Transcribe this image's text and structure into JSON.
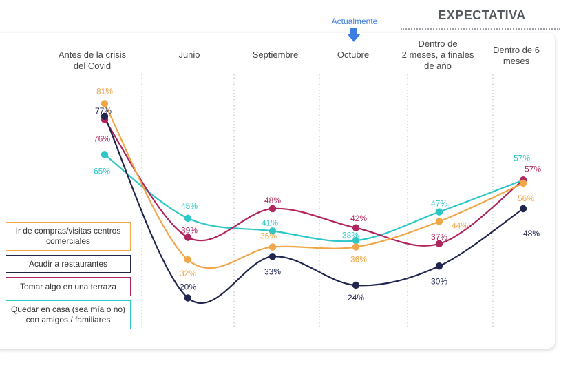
{
  "header": {
    "expectativa": "EXPECTATIVA",
    "actualmente": "Actualmente"
  },
  "chart_data": {
    "type": "line",
    "categories": [
      "Antes de la crisis del Covid",
      "Junio",
      "Septiembre",
      "Octubre",
      "Dentro de 2 meses, a finales de año",
      "Dentro de 6 meses"
    ],
    "ylim": [
      0,
      100
    ],
    "grid": "vertical dotted separators",
    "legend_position": "left",
    "series": [
      {
        "name": "Ir de compras/visitas centros comerciales",
        "color": "#f2a64a",
        "values": [
          81,
          32,
          36,
          36,
          44,
          56
        ],
        "labels": [
          "81%",
          "32%",
          "36%",
          "36%",
          "44%",
          "56%"
        ]
      },
      {
        "name": "Acudir a restaurantes",
        "color": "#20264e",
        "values": [
          77,
          20,
          33,
          24,
          30,
          48
        ],
        "labels": [
          "77%",
          "20%",
          "33%",
          "24%",
          "30%",
          "48%"
        ]
      },
      {
        "name": "Tomar algo en una terraza",
        "color": "#b0255e",
        "values": [
          76,
          39,
          48,
          42,
          37,
          57
        ],
        "labels": [
          "76%",
          "39%",
          "48%",
          "42%",
          "37%",
          "57%"
        ]
      },
      {
        "name": "Quedar en casa (sea mía o no) con amigos / familiares",
        "color": "#2ec7c7",
        "values": [
          65,
          45,
          41,
          38,
          47,
          57
        ],
        "labels": [
          "65%",
          "45%",
          "41%",
          "38%",
          "47%",
          "57%"
        ]
      }
    ]
  }
}
